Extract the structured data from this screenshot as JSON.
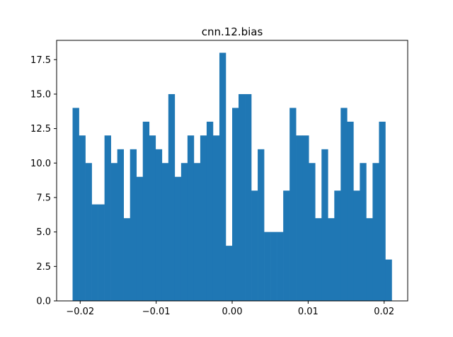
{
  "chart_data": {
    "type": "histogram",
    "title": "cnn.12.bias",
    "xlabel": "",
    "ylabel": "",
    "bar_color": "#1f77b4",
    "bin_start": -0.021,
    "bin_width": 0.00084,
    "values": [
      14,
      12,
      10,
      7,
      7,
      12,
      10,
      11,
      6,
      11,
      9,
      13,
      12,
      11,
      10,
      15,
      9,
      10,
      12,
      10,
      12,
      13,
      12,
      18,
      4,
      14,
      15,
      15,
      8,
      11,
      5,
      5,
      5,
      8,
      14,
      12,
      12,
      10,
      6,
      11,
      6,
      8,
      14,
      13,
      8,
      10,
      6,
      10,
      13,
      3
    ],
    "xlim": [
      -0.0231,
      0.0231
    ],
    "ylim": [
      0,
      18.9
    ],
    "xticks": [
      -0.02,
      -0.01,
      0.0,
      0.01,
      0.02
    ],
    "xtick_labels": [
      "−0.02",
      "−0.01",
      "0.00",
      "0.01",
      "0.02"
    ],
    "yticks": [
      0,
      2.5,
      5,
      7.5,
      10,
      12.5,
      15,
      17.5
    ],
    "ytick_labels": [
      "0.0",
      "2.5",
      "5.0",
      "7.5",
      "10.0",
      "12.5",
      "15.0",
      "17.5"
    ]
  }
}
